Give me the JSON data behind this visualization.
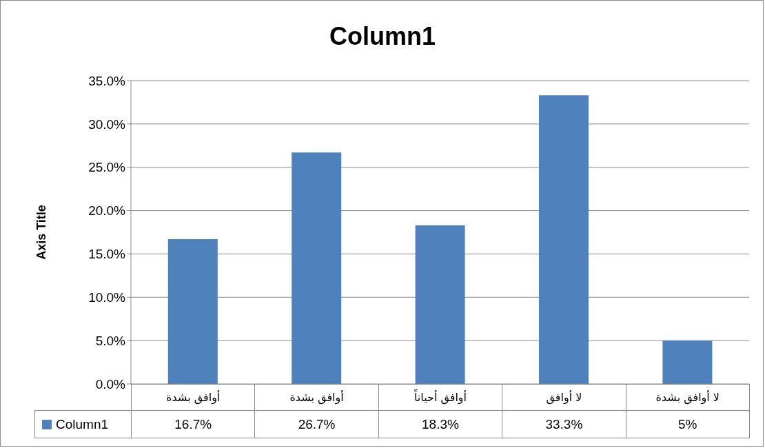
{
  "chart_data": {
    "type": "bar",
    "title": "Column1",
    "ylabel": "Axis Title",
    "categories": [
      "أوافق بشدة",
      "أوافق بشدة",
      "أوافق أحياناً",
      "لا أوافق",
      "لا أوافق بشدة"
    ],
    "series": [
      {
        "name": "Column1",
        "color": "#4f81bd",
        "values": [
          16.7,
          26.7,
          18.3,
          33.3,
          5
        ],
        "value_labels": [
          "16.7%",
          "26.7%",
          "18.3%",
          "33.3%",
          "5%"
        ]
      }
    ],
    "ylim": [
      0,
      35
    ],
    "yticks": [
      {
        "value": 0,
        "label": "0.0%"
      },
      {
        "value": 5,
        "label": "5.0%"
      },
      {
        "value": 10,
        "label": "10.0%"
      },
      {
        "value": 15,
        "label": "15.0%"
      },
      {
        "value": 20,
        "label": "20.0%"
      },
      {
        "value": 25,
        "label": "25.0%"
      },
      {
        "value": 30,
        "label": "30.0%"
      },
      {
        "value": 35,
        "label": "35.0%"
      }
    ],
    "grid": "y",
    "legend": "bottom"
  }
}
